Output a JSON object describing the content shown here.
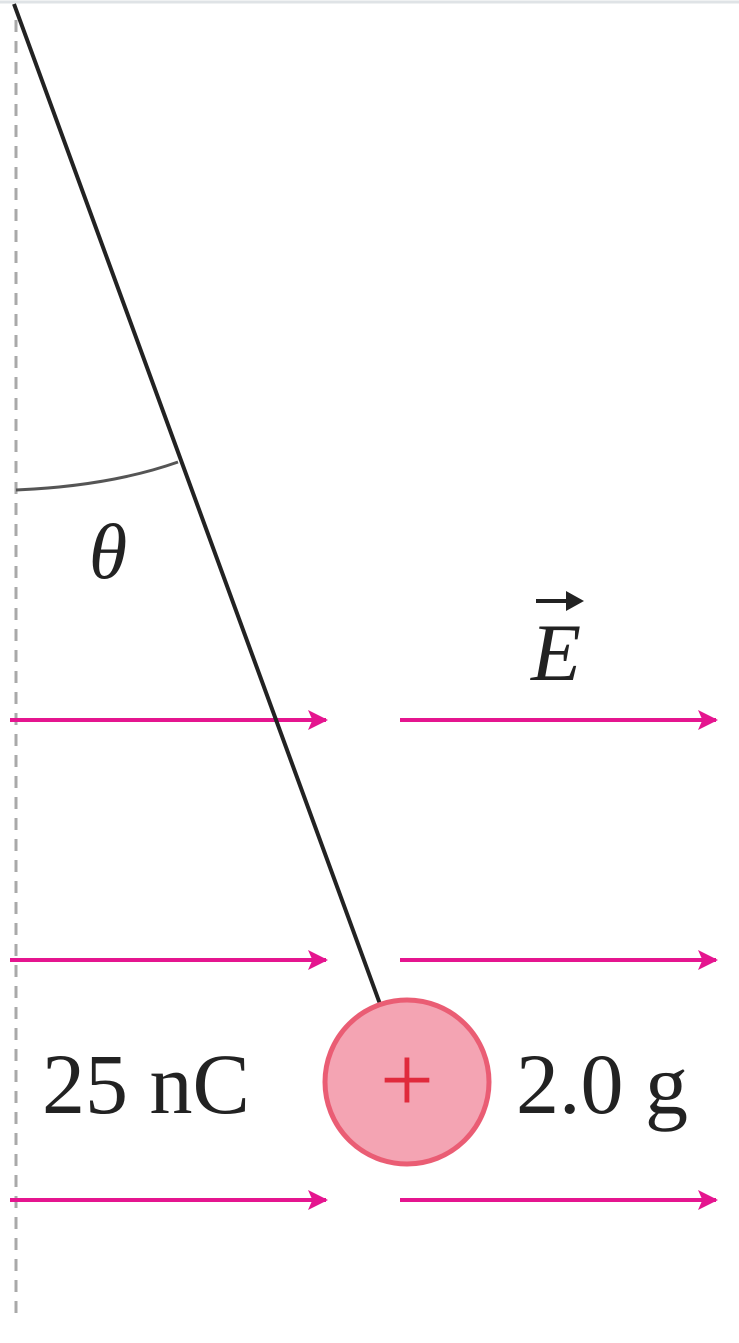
{
  "labels": {
    "angle": "θ",
    "field": "E",
    "charge_value": "25 nC",
    "charge_sign": "+",
    "mass_value": "2.0 g"
  },
  "colors": {
    "background": "#ffffff",
    "top_border": "#dfe3e6",
    "vertical_reference": "#a9a9a9",
    "string": "#222222",
    "arc": "#555555",
    "field_arrow": "#e5158f",
    "ball_fill": "#f4a4b3",
    "ball_stroke": "#ea5d74",
    "plus_sign": "#e02a3c",
    "text": "#222222"
  }
}
